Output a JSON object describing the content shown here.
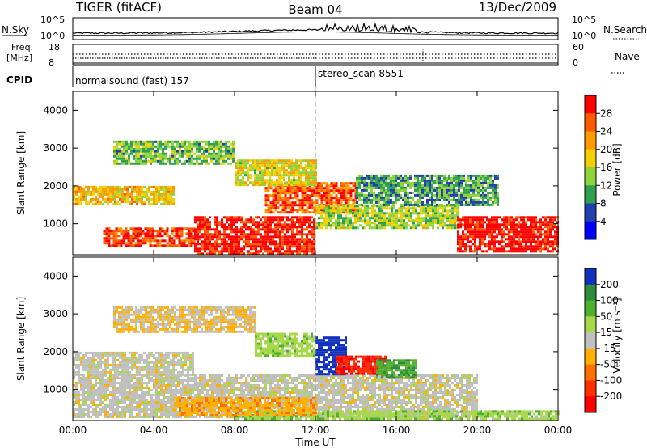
{
  "header": {
    "radar": "TIGER (fitACF)",
    "beam": "Beam 04",
    "date": "13/Dec/2009"
  },
  "noise_panel": {
    "left_label": "N.Sky",
    "right_label": "N.Search",
    "left_ticks": [
      "10^5",
      "10^0"
    ],
    "right_ticks": [
      "10^5",
      "10^0"
    ]
  },
  "freq_panel": {
    "left_label_1": "Freq.",
    "left_label_2": "[MHz]",
    "right_label": "Nave",
    "left_ticks": [
      "18",
      "8"
    ],
    "right_ticks": [
      "60",
      "0"
    ]
  },
  "cpid_panel": {
    "label": "CPID",
    "modes": [
      {
        "name": "normalsound (fast)",
        "id": "157",
        "start": "00:00"
      },
      {
        "name": "stereo_scan",
        "id": "8551",
        "start": "12:00"
      }
    ]
  },
  "x_axis": {
    "label": "Time UT",
    "ticks": [
      "00:00",
      "04:00",
      "08:00",
      "12:00",
      "16:00",
      "20:00",
      "00:00"
    ]
  },
  "power_colorbar": {
    "label": "Power [dB]",
    "ticks": [
      "28",
      "24",
      "20",
      "16",
      "12",
      "8",
      "4"
    ],
    "colors": [
      "#ff0000",
      "#ff5a00",
      "#ff9a00",
      "#f5d000",
      "#8fd43a",
      "#2fa050",
      "#2040b0",
      "#0000ff"
    ]
  },
  "velocity_colorbar": {
    "label": "Velocity [m s⁻¹]",
    "ticks": [
      "200",
      "100",
      "50",
      "15",
      "-15",
      "-50",
      "-100",
      "-200"
    ],
    "colors": [
      "#1030c0",
      "#2f8a3a",
      "#4fb030",
      "#a6d84a",
      "#c0c0c0",
      "#ffb000",
      "#ff7000",
      "#ff3000",
      "#ff0000"
    ]
  },
  "chart_data": [
    {
      "type": "heatmap",
      "title": "",
      "xlabel": "Time UT",
      "ylabel": "Slant Range [km]",
      "xlim": [
        "00:00",
        "24:00"
      ],
      "ylim": [
        180,
        4500
      ],
      "yticks": [
        1000,
        2000,
        3000,
        4000
      ],
      "colorbar": "Power [dB]",
      "clim": [
        0,
        30
      ],
      "regions": [
        {
          "t": [
            1.5,
            6.0
          ],
          "r": [
            400,
            900
          ],
          "v": 26
        },
        {
          "t": [
            6.0,
            12.0
          ],
          "r": [
            200,
            1200
          ],
          "v": 28
        },
        {
          "t": [
            0.0,
            5.0
          ],
          "r": [
            1500,
            2000
          ],
          "v": 18
        },
        {
          "t": [
            9.5,
            14.0
          ],
          "r": [
            1300,
            2100
          ],
          "v": 25
        },
        {
          "t": [
            12.0,
            19.0
          ],
          "r": [
            900,
            1500
          ],
          "v": 14
        },
        {
          "t": [
            19.0,
            24.0
          ],
          "r": [
            300,
            1200
          ],
          "v": 29
        },
        {
          "t": [
            2.0,
            8.0
          ],
          "r": [
            2600,
            3200
          ],
          "v": 12
        },
        {
          "t": [
            8.0,
            12.0
          ],
          "r": [
            2000,
            2700
          ],
          "v": 16
        },
        {
          "t": [
            14.0,
            21.0
          ],
          "r": [
            1500,
            2300
          ],
          "v": 10
        }
      ]
    },
    {
      "type": "heatmap",
      "title": "",
      "xlabel": "Time UT",
      "ylabel": "Slant Range [km]",
      "xlim": [
        "00:00",
        "24:00"
      ],
      "ylim": [
        180,
        4500
      ],
      "yticks": [
        1000,
        2000,
        3000,
        4000
      ],
      "colorbar": "Velocity [m s⁻¹]",
      "clim": [
        -200,
        200
      ],
      "regions": [
        {
          "t": [
            0.0,
            20.0
          ],
          "r": [
            300,
            1400
          ],
          "v": 0
        },
        {
          "t": [
            0.0,
            6.0
          ],
          "r": [
            1400,
            2000
          ],
          "v": 0
        },
        {
          "t": [
            2.0,
            9.0
          ],
          "r": [
            2500,
            3200
          ],
          "v": -20
        },
        {
          "t": [
            9.0,
            12.0
          ],
          "r": [
            1900,
            2500
          ],
          "v": 50
        },
        {
          "t": [
            12.0,
            13.5
          ],
          "r": [
            1400,
            2400
          ],
          "v": 200
        },
        {
          "t": [
            13.0,
            15.5
          ],
          "r": [
            1400,
            1900
          ],
          "v": -150
        },
        {
          "t": [
            15.0,
            17.0
          ],
          "r": [
            1300,
            1800
          ],
          "v": 100
        },
        {
          "t": [
            8.0,
            24.0
          ],
          "r": [
            250,
            450
          ],
          "v": 50
        },
        {
          "t": [
            5.0,
            12.0
          ],
          "r": [
            300,
            800
          ],
          "v": -50
        }
      ]
    }
  ]
}
